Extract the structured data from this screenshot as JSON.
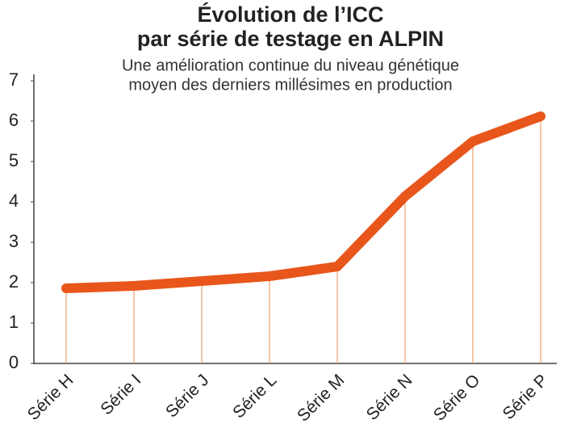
{
  "chart_data": {
    "type": "line",
    "title": [
      "Évolution de l’ICC",
      "par série de testage en ALPIN"
    ],
    "subtitle": [
      "Une amélioration continue du niveau génétique",
      "moyen des derniers millésimes en production"
    ],
    "categories": [
      "Série H",
      "Série I",
      "Série J",
      "Série L",
      "Série M",
      "Série N",
      "Série O",
      "Série P"
    ],
    "values": [
      1.86,
      1.92,
      2.04,
      2.16,
      2.4,
      4.14,
      5.5,
      6.12
    ],
    "color": "#e8561c",
    "ylim": [
      0,
      7
    ],
    "yticks": [
      0,
      1,
      2,
      3,
      4,
      5,
      6,
      7
    ],
    "grid": false
  }
}
